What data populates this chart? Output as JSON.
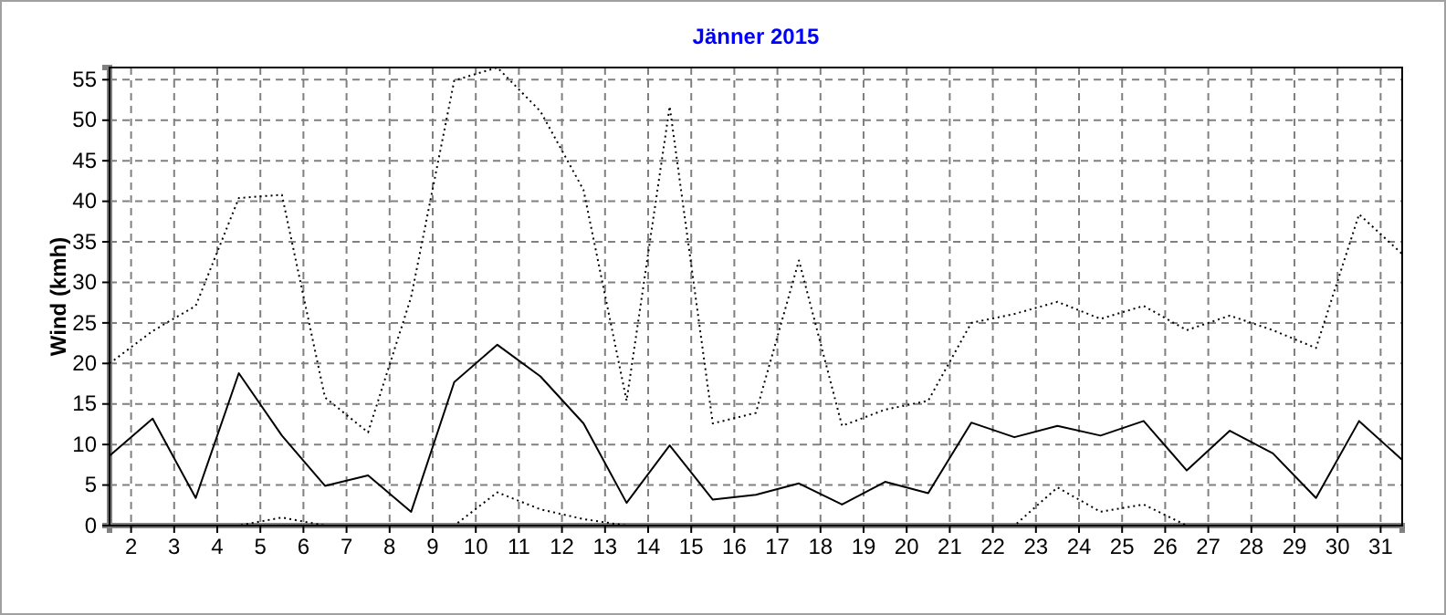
{
  "chart_data": {
    "type": "line",
    "title": "Jänner 2015",
    "ylabel": "Wind  (kmh)",
    "x": [
      1.5,
      2.5,
      3.5,
      4.5,
      5.5,
      6.5,
      7.5,
      8.5,
      9.5,
      10.5,
      11.5,
      12.5,
      13.5,
      14.5,
      15.5,
      16.5,
      17.5,
      18.5,
      19.5,
      20.5,
      21.5,
      22.5,
      23.5,
      24.5,
      25.5,
      26.5,
      27.5,
      28.5,
      29.5,
      30.5,
      31.5
    ],
    "xlim": [
      1.5,
      31.5
    ],
    "xticks": [
      2,
      3,
      4,
      5,
      6,
      7,
      8,
      9,
      10,
      11,
      12,
      13,
      14,
      15,
      16,
      17,
      18,
      19,
      20,
      21,
      22,
      23,
      24,
      25,
      26,
      27,
      28,
      29,
      30,
      31
    ],
    "ylim": [
      0,
      56.5
    ],
    "yticks": [
      0,
      5,
      10,
      15,
      20,
      25,
      30,
      35,
      40,
      45,
      50,
      55
    ],
    "grid": true,
    "marker": "none",
    "series": [
      {
        "color": "#000000",
        "line_style": "dotted",
        "values": [
          20,
          24,
          27.1,
          40.4,
          40.8,
          15.8,
          11.5,
          28.2,
          54.9,
          56.5,
          51.1,
          41.4,
          15.4,
          51.7,
          12.6,
          13.9,
          32.7,
          12.3,
          14.3,
          15.4,
          25,
          26.1,
          27.6,
          25.5,
          27.1,
          24.1,
          25.9,
          24.1,
          21.9,
          38.4,
          33.5
        ]
      },
      {
        "color": "#000000",
        "line_style": "solid",
        "values": [
          8.6,
          13.2,
          3.4,
          18.8,
          11.1,
          4.9,
          6.2,
          1.7,
          17.7,
          22.3,
          18.4,
          12.6,
          2.8,
          9.9,
          3.2,
          3.8,
          5.2,
          2.6,
          5.4,
          4.0,
          12.7,
          10.9,
          12.3,
          11.1,
          12.9,
          6.8,
          11.7,
          8.9,
          3.4,
          12.9,
          8.1
        ]
      },
      {
        "color": "#000000",
        "line_style": "dotted",
        "values": [
          0,
          0,
          0,
          0,
          1,
          0,
          0,
          0,
          0,
          4.1,
          2,
          0.8,
          0,
          0,
          0,
          0,
          0,
          0,
          0,
          0,
          0,
          0,
          4.7,
          1.7,
          2.6,
          0,
          0,
          0,
          0,
          0,
          0
        ]
      }
    ]
  }
}
